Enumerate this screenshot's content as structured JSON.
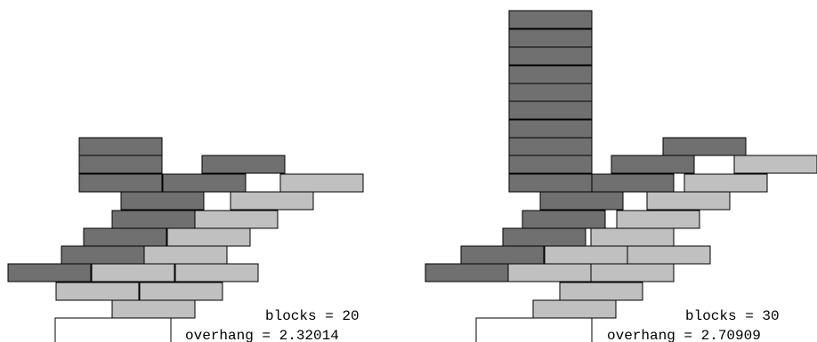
{
  "colors": {
    "dark_block": "#707070",
    "light_block": "#c0c0c0",
    "outline": "#000000",
    "table": "#ffffff"
  },
  "panels": [
    {
      "name": "left",
      "blocks_line": "blocks = 20",
      "overhang_line": "overhang = 2.32014",
      "blocks": [
        {
          "c": "d"
        },
        {
          "c": "d"
        },
        {
          "c": "d"
        },
        {
          "c": "d"
        },
        {
          "c": "l"
        },
        {
          "c": "d"
        },
        {
          "c": "d"
        },
        {
          "c": "l"
        },
        {
          "c": "d"
        },
        {
          "c": "l"
        },
        {
          "c": "d"
        },
        {
          "c": "l"
        },
        {
          "c": "d"
        },
        {
          "c": "l"
        },
        {
          "c": "d"
        },
        {
          "c": "l"
        },
        {
          "c": "l"
        },
        {
          "c": "l"
        },
        {
          "c": "l"
        },
        {
          "c": "l"
        }
      ]
    },
    {
      "name": "right",
      "blocks_line": "blocks = 30",
      "overhang_line": "overhang = 2.70909",
      "blocks": [
        {
          "c": "d"
        },
        {
          "c": "d"
        },
        {
          "c": "d"
        },
        {
          "c": "d"
        },
        {
          "c": "d"
        },
        {
          "c": "d"
        },
        {
          "c": "d"
        },
        {
          "c": "d"
        },
        {
          "c": "d"
        },
        {
          "c": "d"
        },
        {
          "c": "d"
        },
        {
          "c": "d"
        },
        {
          "c": "d"
        },
        {
          "c": "l"
        },
        {
          "c": "d"
        },
        {
          "c": "d"
        },
        {
          "c": "l"
        },
        {
          "c": "d"
        },
        {
          "c": "l"
        },
        {
          "c": "d"
        },
        {
          "c": "l"
        },
        {
          "c": "d"
        },
        {
          "c": "l"
        },
        {
          "c": "d"
        },
        {
          "c": "l"
        },
        {
          "c": "l"
        },
        {
          "c": "l"
        },
        {
          "c": "l"
        },
        {
          "c": "l"
        },
        {
          "c": "l"
        }
      ]
    }
  ]
}
